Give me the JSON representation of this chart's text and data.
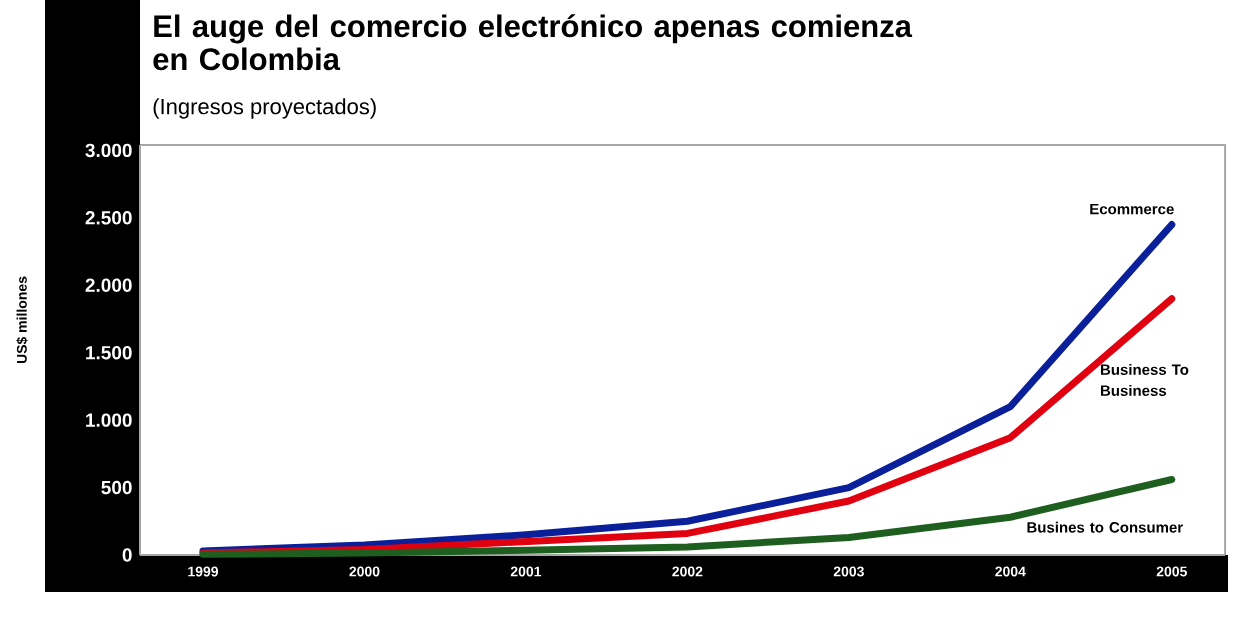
{
  "chart_data": {
    "type": "line",
    "title": "El auge del comercio electrónico apenas comienza en Colombia",
    "subtitle": "(Ingresos proyectados)",
    "ylabel": "US$ millones",
    "categories": [
      "1999",
      "2000",
      "2001",
      "2002",
      "2003",
      "2004",
      "2005"
    ],
    "series": [
      {
        "name": "Ecommerce",
        "color": "#0a1f9a",
        "values": [
          30,
          75,
          150,
          250,
          500,
          1100,
          2450
        ]
      },
      {
        "name": "Business To Business",
        "color": "#e00010",
        "values": [
          15,
          40,
          100,
          160,
          400,
          870,
          1900
        ]
      },
      {
        "name": "Busines to Consumer",
        "color": "#1e5e1e",
        "values": [
          5,
          15,
          35,
          60,
          130,
          280,
          560
        ]
      }
    ],
    "ylim": [
      0,
      3040
    ],
    "yticks": [
      0,
      {
        "value": 500,
        "label": "500"
      },
      {
        "value": 1000,
        "label": "1.000"
      },
      {
        "value": 1500,
        "label": "1.500"
      },
      {
        "value": 2000,
        "label": "2.000"
      },
      {
        "value": 2500,
        "label": "2.500"
      },
      {
        "value": 3000,
        "label": "3.000"
      }
    ],
    "grid": false,
    "marker": "none",
    "line_style": "solid"
  }
}
